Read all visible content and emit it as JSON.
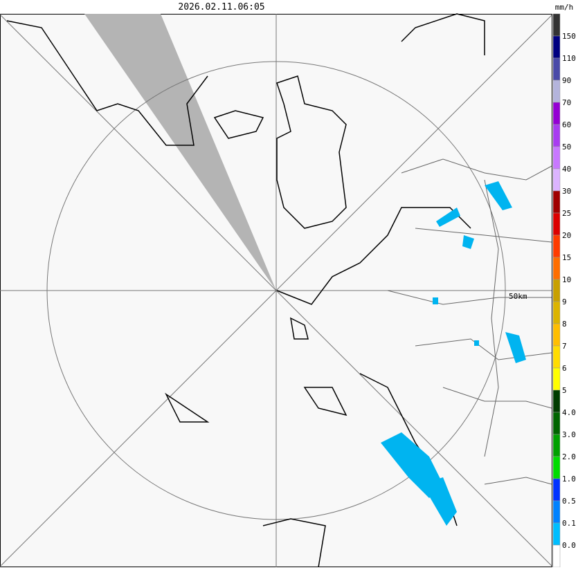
{
  "header": {
    "timestamp": "2026.02.11.06:05"
  },
  "map": {
    "range_label": "50km"
  },
  "legend": {
    "unit": "mm/h",
    "colors": [
      "#333333",
      "#000080",
      "#4a4aa8",
      "#b4b4dc",
      "#9400d3",
      "#a83cf0",
      "#c878ff",
      "#dcb4ff",
      "#a00000",
      "#dc0000",
      "#ff3c00",
      "#ff6e00",
      "#c8a000",
      "#dcb400",
      "#ffbe00",
      "#ffdc00",
      "#ffff00",
      "#003c00",
      "#006400",
      "#00a000",
      "#00dc00",
      "#0032ff",
      "#0082ff",
      "#00beff",
      "#ffffff"
    ],
    "labels": [
      "150",
      "110",
      "90",
      "70",
      "60",
      "50",
      "40",
      "30",
      "25",
      "20",
      "15",
      "10",
      "9",
      "8",
      "7",
      "6",
      "5",
      "4.0",
      "3.0",
      "2.0",
      "1.0",
      "0.5",
      "0.1",
      "0.0"
    ]
  }
}
